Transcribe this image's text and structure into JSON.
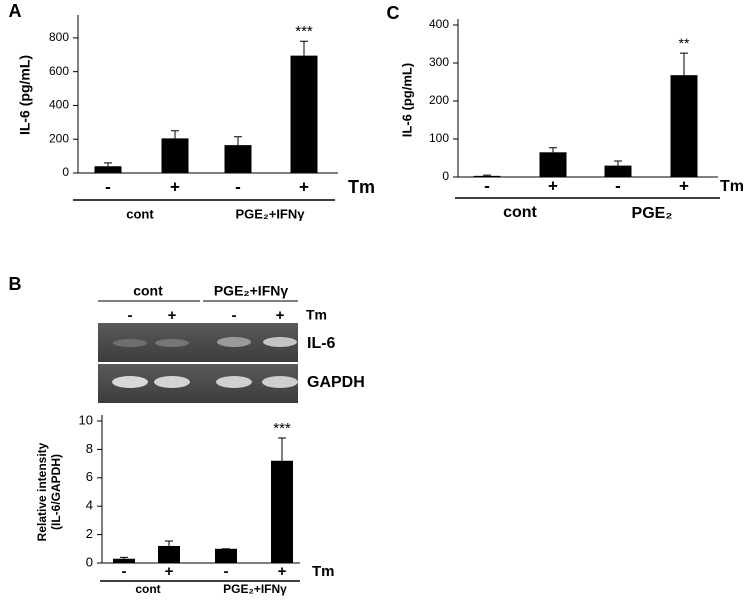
{
  "chart_data": [
    {
      "type": "bar",
      "panel": "A",
      "ylabel": "IL-6 (pg/mL)",
      "categories": [
        "-",
        "+",
        "-",
        "+"
      ],
      "values": [
        40,
        205,
        165,
        695
      ],
      "errors": [
        20,
        45,
        50,
        85
      ],
      "annotations": [
        null,
        null,
        null,
        "***"
      ],
      "color": "#000000",
      "ylim": [
        0,
        900
      ],
      "yticks": [
        0,
        200,
        400,
        600,
        800
      ],
      "groups": [
        "cont",
        "PGE₂+IFNγ"
      ],
      "x_annotation": "Tm"
    },
    {
      "type": "bar",
      "panel": "C",
      "ylabel": "IL-6 (pg/mL)",
      "categories": [
        "-",
        "+",
        "-",
        "+"
      ],
      "values": [
        3,
        65,
        30,
        268
      ],
      "errors": [
        2,
        12,
        12,
        58
      ],
      "annotations": [
        null,
        null,
        null,
        "**"
      ],
      "color": "#000000",
      "ylim": [
        0,
        400
      ],
      "yticks": [
        0,
        100,
        200,
        300,
        400
      ],
      "groups": [
        "cont",
        "PGE₂"
      ],
      "x_annotation": "Tm"
    },
    {
      "type": "bar",
      "panel": "B",
      "ylabel": [
        "Relative intensity",
        "(IL-6/GAPDH)"
      ],
      "categories": [
        "-",
        "+",
        "-",
        "+"
      ],
      "values": [
        0.3,
        1.2,
        1.0,
        7.2
      ],
      "errors": [
        0.1,
        0.35,
        0,
        1.6
      ],
      "annotations": [
        null,
        null,
        null,
        "***"
      ],
      "color": "#000000",
      "ylim": [
        0,
        10
      ],
      "yticks": [
        0,
        2,
        4,
        6,
        8,
        10
      ],
      "groups": [
        "cont",
        "PGE₂+IFNγ"
      ],
      "x_annotation": "Tm"
    }
  ],
  "gel": {
    "groups": [
      "cont",
      "PGE₂+IFNγ"
    ],
    "lanes": [
      "-",
      "+",
      "-",
      "+"
    ],
    "x_annotation": "Tm",
    "rows": [
      "IL-6",
      "GAPDH"
    ]
  }
}
